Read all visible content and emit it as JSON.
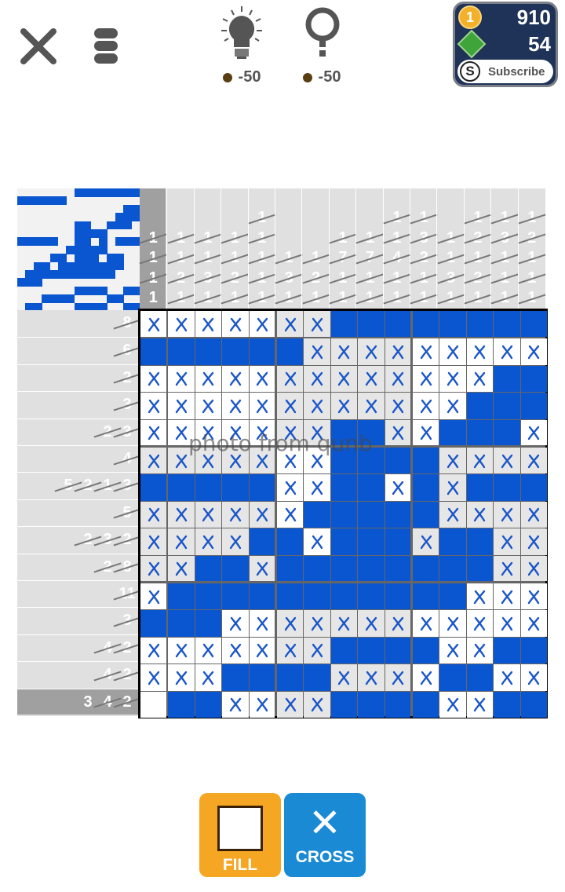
{
  "toolbar": {
    "hint_cost": "-50",
    "reveal_cost": "-50",
    "close_icon": "close-icon",
    "menu_icon": "menu-icon",
    "hint_icon": "lightbulb-icon",
    "reveal_icon": "question-magnifier-icon"
  },
  "wallet": {
    "coins": "910",
    "coin_symbol": "1",
    "tokens": "54",
    "subscribe_label": "Subscribe",
    "subscribe_symbol": "S"
  },
  "colors": {
    "filled": "#0a55d0",
    "cross": "#1a56c8",
    "fill_button": "#f5a623",
    "cross_button": "#1a8ad4"
  },
  "puzzle": {
    "size": 15,
    "column_clues": [
      [
        {
          "n": 1,
          "done": true
        },
        {
          "n": 1,
          "done": true
        },
        {
          "n": 1,
          "done": true
        },
        {
          "n": 1,
          "done": false
        }
      ],
      [
        {
          "n": 1,
          "done": true
        },
        {
          "n": 1,
          "done": true
        },
        {
          "n": 2,
          "done": true
        },
        {
          "n": 1,
          "done": true
        }
      ],
      [
        {
          "n": 1,
          "done": true
        },
        {
          "n": 1,
          "done": true
        },
        {
          "n": 3,
          "done": true
        },
        {
          "n": 1,
          "done": true
        }
      ],
      [
        {
          "n": 1,
          "done": true
        },
        {
          "n": 1,
          "done": true
        },
        {
          "n": 2,
          "done": true
        },
        {
          "n": 1,
          "done": true
        }
      ],
      [
        {
          "n": 1,
          "done": true
        },
        {
          "n": 1,
          "done": true
        },
        {
          "n": 1,
          "done": true
        },
        {
          "n": 1,
          "done": true
        },
        {
          "n": 1,
          "done": true
        }
      ],
      [
        {
          "n": 1,
          "done": true
        },
        {
          "n": 3,
          "done": true
        },
        {
          "n": 1,
          "done": true
        }
      ],
      [
        {
          "n": 1,
          "done": true
        },
        {
          "n": 2,
          "done": true
        },
        {
          "n": 1,
          "done": true
        }
      ],
      [
        {
          "n": 1,
          "done": true
        },
        {
          "n": 7,
          "done": true
        },
        {
          "n": 1,
          "done": true
        },
        {
          "n": 1,
          "done": true
        }
      ],
      [
        {
          "n": 1,
          "done": true
        },
        {
          "n": 7,
          "done": true
        },
        {
          "n": 1,
          "done": true
        },
        {
          "n": 1,
          "done": true
        }
      ],
      [
        {
          "n": 1,
          "done": true
        },
        {
          "n": 1,
          "done": true
        },
        {
          "n": 4,
          "done": true
        },
        {
          "n": 1,
          "done": true
        },
        {
          "n": 1,
          "done": true
        }
      ],
      [
        {
          "n": 1,
          "done": true
        },
        {
          "n": 3,
          "done": true
        },
        {
          "n": 2,
          "done": true
        },
        {
          "n": 1,
          "done": true
        },
        {
          "n": 1,
          "done": true
        }
      ],
      [
        {
          "n": 1,
          "done": true
        },
        {
          "n": 1,
          "done": true
        },
        {
          "n": 3,
          "done": true
        },
        {
          "n": 1,
          "done": true
        }
      ],
      [
        {
          "n": 1,
          "done": true
        },
        {
          "n": 2,
          "done": true
        },
        {
          "n": 1,
          "done": true
        },
        {
          "n": 2,
          "done": true
        },
        {
          "n": 1,
          "done": true
        }
      ],
      [
        {
          "n": 1,
          "done": true
        },
        {
          "n": 3,
          "done": true
        },
        {
          "n": 1,
          "done": true
        },
        {
          "n": 1,
          "done": true
        },
        {
          "n": 1,
          "done": true
        }
      ],
      [
        {
          "n": 1,
          "done": true
        },
        {
          "n": 2,
          "done": true
        },
        {
          "n": 1,
          "done": true
        },
        {
          "n": 1,
          "done": true
        },
        {
          "n": 1,
          "done": true
        }
      ]
    ],
    "row_clues": [
      [
        {
          "n": 8,
          "done": true
        }
      ],
      [
        {
          "n": 6,
          "done": true
        }
      ],
      [
        {
          "n": 2,
          "done": true
        }
      ],
      [
        {
          "n": 3,
          "done": true
        }
      ],
      [
        {
          "n": 2,
          "done": true
        },
        {
          "n": 3,
          "done": true
        }
      ],
      [
        {
          "n": 4,
          "done": true
        }
      ],
      [
        {
          "n": 5,
          "done": true
        },
        {
          "n": 2,
          "done": true
        },
        {
          "n": 1,
          "done": true
        },
        {
          "n": 3,
          "done": true
        }
      ],
      [
        {
          "n": 5,
          "done": true
        }
      ],
      [
        {
          "n": 2,
          "done": true
        },
        {
          "n": 3,
          "done": true
        },
        {
          "n": 2,
          "done": true
        }
      ],
      [
        {
          "n": 2,
          "done": true
        },
        {
          "n": 8,
          "done": true
        }
      ],
      [
        {
          "n": 11,
          "done": true
        }
      ],
      [
        {
          "n": 3,
          "done": true
        }
      ],
      [
        {
          "n": 4,
          "done": true
        },
        {
          "n": 2,
          "done": true
        }
      ],
      [
        {
          "n": 4,
          "done": true
        },
        {
          "n": 2,
          "done": true
        }
      ],
      [
        {
          "n": 3,
          "done": false
        },
        {
          "n": 4,
          "done": true
        },
        {
          "n": 2,
          "done": true
        }
      ]
    ],
    "grid_legend": "F = filled, X = crossed, . = empty",
    "grid": [
      "XXXXXXXFFFFFFFF",
      "FFFFFFXXXXXXXXX",
      "XXXXXXXXXXXXXFF",
      "XXXXXXXXXXXXFFF",
      "XXXXXXXFFXXFFFX",
      "XXXXXXXFFFFXXXX",
      "FFFFFXXFFXFXFFF",
      "XXXXXXFFFFFXXXX",
      "XXXXFFXFFFXFFXX",
      "XXFFXFFFFFFFFXX",
      "XFFFFFFFFFFFXXX",
      "FFFXXXXXXXXXXXX",
      "XXXXXXXFFFFXXFF",
      "XXXFFFFXXXXFFXX",
      ".FFXXXXFFFFXXFF"
    ],
    "active_row": 15,
    "active_column": 1
  },
  "watermark": "photo from qunb",
  "modes": {
    "fill_label": "FILL",
    "cross_label": "CROSS",
    "cross_glyph": "✕"
  }
}
